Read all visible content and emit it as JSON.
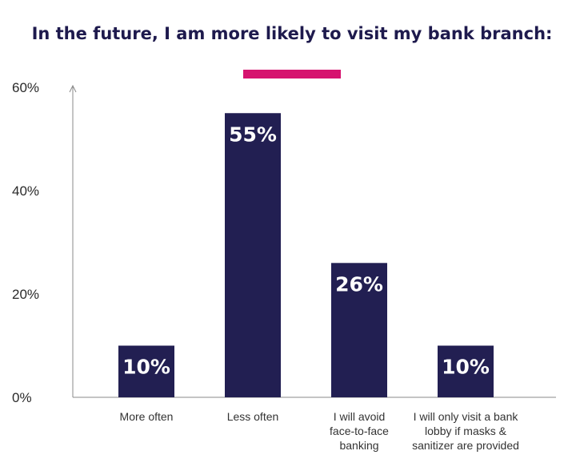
{
  "chart_data": {
    "type": "bar",
    "title": "In the future, I am more likely to visit my bank branch:",
    "categories": [
      [
        "More often"
      ],
      [
        "Less often"
      ],
      [
        "I will avoid",
        "face-to-face",
        "banking"
      ],
      [
        "I will only visit a bank",
        "lobby if masks &",
        "sanitizer are provided"
      ]
    ],
    "values": [
      10,
      55,
      26,
      10
    ],
    "data_labels": [
      "10%",
      "55%",
      "26%",
      "10%"
    ],
    "yticks": [
      "0%",
      "20%",
      "40%",
      "60%"
    ],
    "ylim": [
      0,
      60
    ],
    "grid": false,
    "colors": {
      "bar": "#221f52",
      "accent": "#d6136f",
      "title": "#1e1a4d"
    }
  }
}
